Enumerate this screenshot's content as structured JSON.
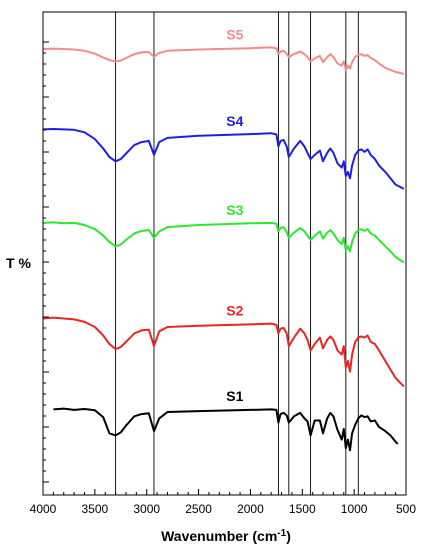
{
  "chart_data": {
    "type": "line",
    "title": "",
    "xlabel": "Wavenumber (cm-1)",
    "xlabel_main": "Wavenumber (cm",
    "xlabel_sup": "-1",
    "xlabel_end": ")",
    "ylabel": "T %",
    "xlim": [
      4000,
      500
    ],
    "x_reversed": true,
    "ylim": [
      0,
      100
    ],
    "x_ticks": [
      "4000",
      "3500",
      "3000",
      "2500",
      "2000",
      "1500",
      "1000",
      "500"
    ],
    "reference_lines_cm1": [
      3300,
      2930,
      1730,
      1630,
      1420,
      1080,
      960
    ],
    "grid": false,
    "legend": "inline labels",
    "series": [
      {
        "name": "S1",
        "color": "#000000",
        "x": [
          3900,
          3800,
          3700,
          3600,
          3500,
          3420,
          3360,
          3300,
          3250,
          3200,
          3120,
          3050,
          2980,
          2930,
          2880,
          2800,
          2500,
          2000,
          1800,
          1750,
          1730,
          1710,
          1680,
          1650,
          1630,
          1580,
          1520,
          1480,
          1450,
          1420,
          1380,
          1330,
          1300,
          1260,
          1230,
          1200,
          1160,
          1120,
          1100,
          1080,
          1060,
          1040,
          1020,
          990,
          960,
          930,
          900,
          870,
          840,
          800,
          760,
          700,
          650,
          600,
          580
        ],
        "y": [
          12.6,
          12.8,
          12.5,
          12.7,
          12.4,
          10.8,
          7.0,
          6.5,
          7.2,
          8.8,
          11.0,
          11.5,
          11.7,
          7.5,
          10.5,
          12.0,
          12.2,
          12.5,
          12.6,
          12.5,
          9.5,
          11.5,
          11.8,
          11.2,
          9.5,
          11.0,
          11.8,
          10.5,
          9.8,
          6.5,
          10.0,
          10.0,
          7.0,
          10.5,
          11.8,
          11.0,
          7.8,
          5.5,
          8.0,
          3.5,
          5.5,
          3.0,
          7.0,
          9.0,
          10.5,
          11.2,
          10.8,
          11.0,
          9.8,
          10.0,
          8.5,
          7.5,
          6.5,
          5.0,
          4.5
        ]
      },
      {
        "name": "S2",
        "color": "#e82626",
        "x": [
          4000,
          3900,
          3800,
          3700,
          3600,
          3500,
          3420,
          3360,
          3300,
          3250,
          3200,
          3120,
          3050,
          2980,
          2930,
          2880,
          2800,
          2500,
          2000,
          1800,
          1750,
          1730,
          1710,
          1680,
          1650,
          1630,
          1580,
          1520,
          1480,
          1450,
          1420,
          1380,
          1330,
          1300,
          1260,
          1230,
          1200,
          1160,
          1120,
          1100,
          1080,
          1060,
          1040,
          1020,
          990,
          960,
          930,
          900,
          870,
          840,
          800,
          760,
          700,
          650,
          600,
          560,
          520
        ],
        "y": [
          34.0,
          34.2,
          34.0,
          33.8,
          33.2,
          32.0,
          30.0,
          28.0,
          26.8,
          27.3,
          28.5,
          30.5,
          31.2,
          31.4,
          27.5,
          31.0,
          32.0,
          32.3,
          32.6,
          32.8,
          32.5,
          30.5,
          31.6,
          31.8,
          30.5,
          27.5,
          29.5,
          31.6,
          30.5,
          29.0,
          26.5,
          28.0,
          29.5,
          27.0,
          29.0,
          29.8,
          29.0,
          26.5,
          25.5,
          27.5,
          22.5,
          24.0,
          21.5,
          25.5,
          28.5,
          29.5,
          29.8,
          29.5,
          30.0,
          28.5,
          28.0,
          26.5,
          24.0,
          22.0,
          20.0,
          19.0,
          18.0
        ]
      },
      {
        "name": "S3",
        "color": "#2ee62e",
        "x": [
          4000,
          3900,
          3800,
          3700,
          3600,
          3500,
          3420,
          3360,
          3300,
          3250,
          3200,
          3120,
          3050,
          2980,
          2930,
          2880,
          2800,
          2500,
          2000,
          1800,
          1750,
          1730,
          1710,
          1680,
          1650,
          1630,
          1580,
          1520,
          1480,
          1450,
          1420,
          1380,
          1330,
          1300,
          1260,
          1230,
          1200,
          1160,
          1120,
          1100,
          1080,
          1060,
          1040,
          1020,
          990,
          960,
          930,
          900,
          870,
          840,
          800,
          760,
          700,
          650,
          600,
          560,
          520
        ],
        "y": [
          56.5,
          56.6,
          56.4,
          56.5,
          56.0,
          55.0,
          53.5,
          52.0,
          51.0,
          51.4,
          52.5,
          54.0,
          54.6,
          54.8,
          53.0,
          54.5,
          55.5,
          56.0,
          56.4,
          56.5,
          56.3,
          54.5,
          55.3,
          55.5,
          54.3,
          53.0,
          54.2,
          55.3,
          54.5,
          53.5,
          52.5,
          53.5,
          54.5,
          52.8,
          54.2,
          54.8,
          54.0,
          52.5,
          51.5,
          53.0,
          50.0,
          51.0,
          49.8,
          52.0,
          54.0,
          54.8,
          55.0,
          54.6,
          55.0,
          54.0,
          53.5,
          52.5,
          51.0,
          49.8,
          48.5,
          47.8,
          47.2
        ]
      },
      {
        "name": "S4",
        "color": "#1f1fe0",
        "x": [
          4000,
          3900,
          3800,
          3700,
          3600,
          3500,
          3420,
          3360,
          3300,
          3250,
          3200,
          3120,
          3050,
          2980,
          2930,
          2880,
          2800,
          2500,
          2000,
          1800,
          1750,
          1730,
          1710,
          1680,
          1650,
          1630,
          1580,
          1520,
          1480,
          1450,
          1420,
          1380,
          1330,
          1300,
          1260,
          1230,
          1200,
          1160,
          1120,
          1100,
          1080,
          1060,
          1040,
          1020,
          990,
          960,
          930,
          900,
          870,
          840,
          800,
          760,
          700,
          650,
          600,
          560,
          520
        ],
        "y": [
          78.5,
          78.6,
          78.5,
          78.4,
          77.8,
          76.2,
          74.0,
          72.0,
          71.0,
          71.5,
          72.8,
          74.8,
          75.5,
          75.8,
          72.5,
          75.5,
          76.5,
          77.0,
          77.4,
          77.6,
          77.3,
          74.5,
          75.8,
          76.0,
          74.5,
          72.0,
          74.0,
          75.8,
          74.5,
          73.0,
          71.5,
          72.5,
          73.5,
          71.0,
          73.0,
          74.0,
          73.0,
          70.5,
          69.5,
          71.0,
          67.5,
          68.5,
          67.0,
          70.0,
          72.5,
          73.5,
          73.8,
          73.2,
          73.8,
          72.5,
          71.5,
          70.0,
          68.5,
          67.0,
          65.5,
          65.0,
          64.5
        ]
      },
      {
        "name": "S5",
        "color": "#f08c8c",
        "x": [
          4000,
          3900,
          3800,
          3700,
          3600,
          3500,
          3420,
          3360,
          3300,
          3250,
          3200,
          3120,
          3050,
          2980,
          2930,
          2880,
          2800,
          2500,
          2000,
          1800,
          1750,
          1730,
          1710,
          1680,
          1650,
          1630,
          1580,
          1520,
          1480,
          1450,
          1420,
          1380,
          1330,
          1300,
          1260,
          1230,
          1200,
          1160,
          1120,
          1100,
          1080,
          1060,
          1040,
          1020,
          990,
          960,
          930,
          900,
          870,
          840,
          800,
          760,
          700,
          650,
          600,
          560,
          520
        ],
        "y": [
          97.4,
          97.5,
          97.4,
          97.3,
          97.0,
          96.3,
          95.4,
          94.8,
          94.5,
          94.7,
          95.3,
          96.2,
          96.6,
          96.7,
          95.6,
          96.5,
          97.0,
          97.3,
          97.6,
          97.8,
          97.6,
          96.2,
          96.8,
          97.0,
          96.3,
          95.5,
          96.2,
          96.8,
          96.2,
          95.5,
          94.5,
          95.2,
          95.8,
          94.3,
          95.5,
          96.2,
          95.5,
          94.0,
          93.5,
          94.5,
          92.5,
          93.5,
          92.8,
          94.3,
          95.6,
          96.0,
          96.2,
          95.8,
          96.0,
          95.3,
          94.8,
          94.0,
          93.0,
          92.5,
          92.0,
          91.8,
          91.5
        ]
      }
    ]
  }
}
